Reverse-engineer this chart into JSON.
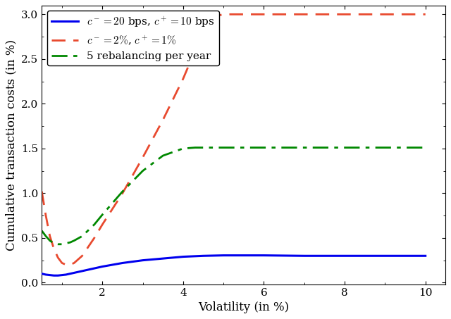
{
  "title": "",
  "xlabel": "Volatility (in %)",
  "ylabel": "Cumulative transaction costs (in %)",
  "xlim": [
    0.5,
    10.5
  ],
  "ylim": [
    -0.02,
    3.1
  ],
  "xticks": [
    2,
    4,
    6,
    8,
    10
  ],
  "yticks": [
    0,
    0.5,
    1.0,
    1.5,
    2.0,
    2.5,
    3.0
  ],
  "blue_x": [
    0.5,
    0.6,
    0.7,
    0.8,
    0.9,
    1.0,
    1.1,
    1.2,
    1.3,
    1.5,
    1.7,
    2.0,
    2.5,
    3.0,
    3.5,
    4.0,
    4.5,
    5.0,
    6.0,
    7.0,
    8.0,
    9.0,
    10.0
  ],
  "blue_y": [
    0.1,
    0.09,
    0.085,
    0.08,
    0.08,
    0.085,
    0.09,
    0.1,
    0.11,
    0.13,
    0.15,
    0.18,
    0.22,
    0.25,
    0.27,
    0.29,
    0.3,
    0.305,
    0.305,
    0.3,
    0.3,
    0.3,
    0.3
  ],
  "blue_color": "#0000ee",
  "blue_label": "$c^- = 20$ bps, $c^+ = 10$ bps",
  "blue_linewidth": 2.2,
  "red_x": [
    0.5,
    0.6,
    0.7,
    0.8,
    0.9,
    1.0,
    1.1,
    1.2,
    1.3,
    1.5,
    1.8,
    2.0,
    2.5,
    3.0,
    3.5,
    4.0,
    4.3,
    4.6,
    4.9,
    5.0,
    5.2,
    5.5,
    6.0,
    7.0,
    8.0,
    9.0,
    10.0
  ],
  "red_y": [
    1.02,
    0.75,
    0.52,
    0.38,
    0.28,
    0.22,
    0.2,
    0.2,
    0.22,
    0.3,
    0.5,
    0.65,
    1.0,
    1.4,
    1.82,
    2.28,
    2.6,
    2.88,
    2.99,
    3.0,
    3.0,
    3.0,
    3.0,
    3.0,
    3.0,
    3.0,
    3.0
  ],
  "red_color": "#e84a2f",
  "red_label": "$c^- = 2\\%$, $c^+ = 1\\%$",
  "red_linewidth": 2.0,
  "green_x": [
    0.5,
    0.6,
    0.7,
    0.8,
    0.9,
    1.0,
    1.1,
    1.2,
    1.3,
    1.5,
    1.8,
    2.0,
    2.5,
    3.0,
    3.5,
    4.0,
    4.3,
    4.6,
    5.0,
    6.0,
    7.0,
    8.0,
    9.0,
    10.0
  ],
  "green_y": [
    0.58,
    0.52,
    0.47,
    0.44,
    0.43,
    0.43,
    0.44,
    0.45,
    0.47,
    0.52,
    0.65,
    0.76,
    1.02,
    1.25,
    1.42,
    1.5,
    1.51,
    1.51,
    1.51,
    1.51,
    1.51,
    1.51,
    1.51,
    1.51
  ],
  "green_color": "#008800",
  "green_label": "5 rebalancing per year",
  "green_linewidth": 2.0,
  "legend_loc": "upper left",
  "legend_fontsize": 11
}
